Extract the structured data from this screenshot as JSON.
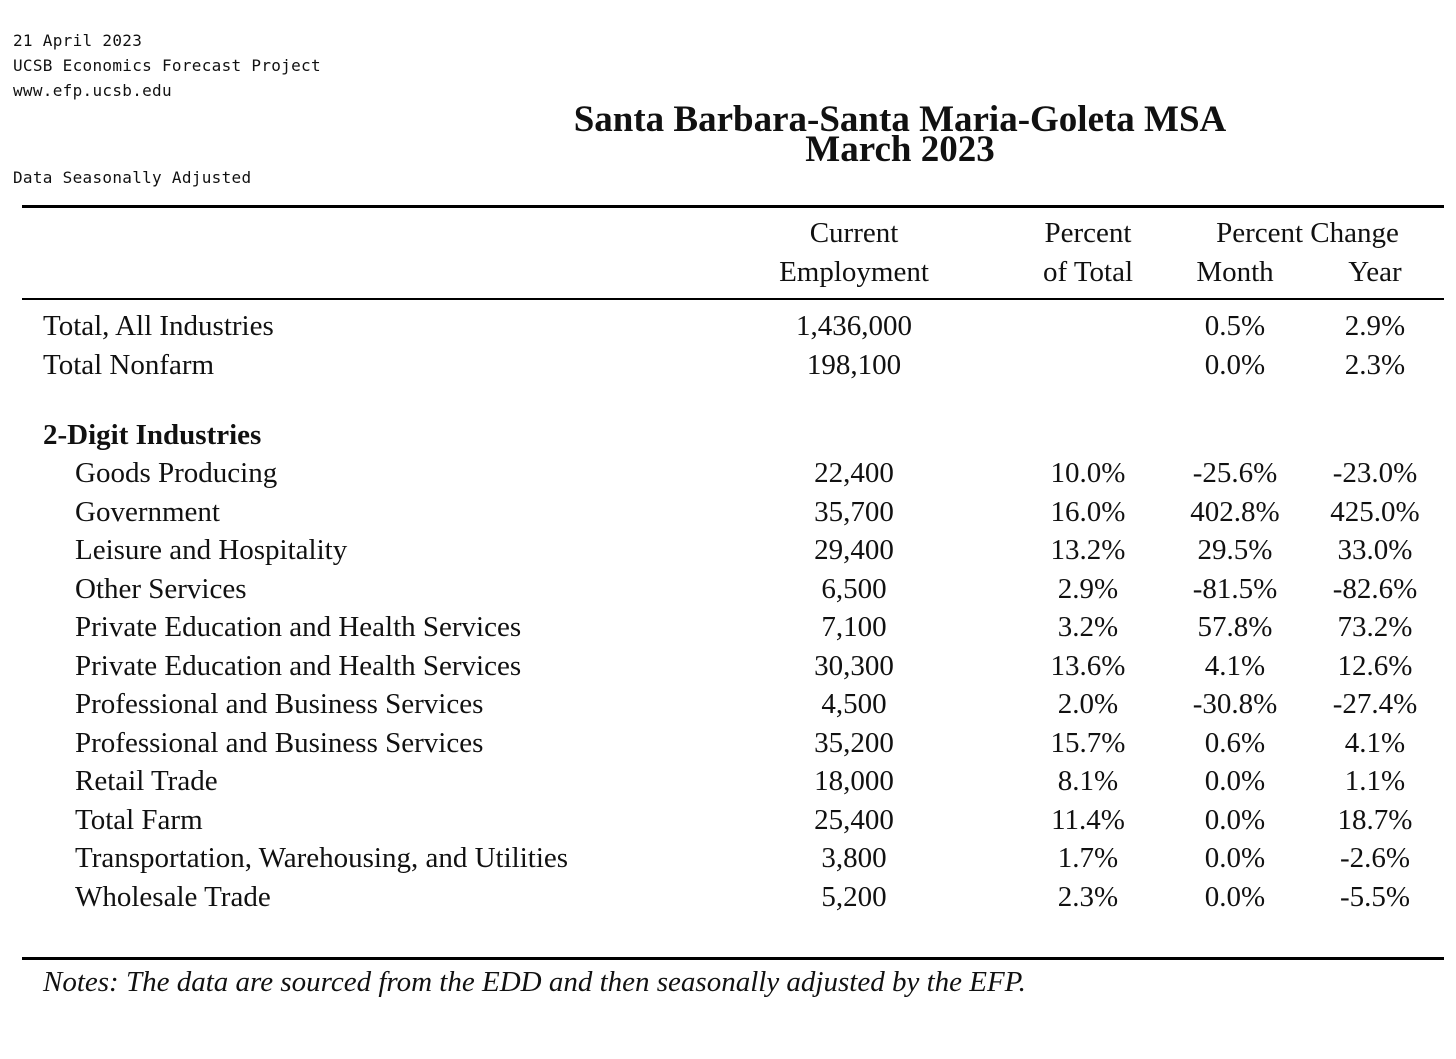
{
  "header": {
    "date": "21 April 2023",
    "organization": "UCSB Economics Forecast Project",
    "website": "www.efp.ucsb.edu",
    "adjusted_note": "Data Seasonally Adjusted",
    "title": "Santa Barbara-Santa Maria-Goleta MSA",
    "subtitle": "March 2023"
  },
  "columns": {
    "employment": [
      "Current",
      "Employment"
    ],
    "percent_total": [
      "Percent",
      "of Total"
    ],
    "percent_change": "Percent Change",
    "month": "Month",
    "year": "Year"
  },
  "totals": [
    {
      "label": "Total, All Industries",
      "employment": "1,436,000",
      "percent_total": "",
      "month": "0.5%",
      "year": "2.9%"
    },
    {
      "label": "Total Nonfarm",
      "employment": "198,100",
      "percent_total": "",
      "month": "0.0%",
      "year": "2.3%"
    }
  ],
  "section_title": "2-Digit Industries",
  "industries": [
    {
      "label": "Goods Producing",
      "employment": "22,400",
      "percent_total": "10.0%",
      "month": "-25.6%",
      "year": "-23.0%"
    },
    {
      "label": "Government",
      "employment": "35,700",
      "percent_total": "16.0%",
      "month": "402.8%",
      "year": "425.0%"
    },
    {
      "label": "Leisure and Hospitality",
      "employment": "29,400",
      "percent_total": "13.2%",
      "month": "29.5%",
      "year": "33.0%"
    },
    {
      "label": "Other Services",
      "employment": "6,500",
      "percent_total": "2.9%",
      "month": "-81.5%",
      "year": "-82.6%"
    },
    {
      "label": "Private Education and Health Services",
      "employment": "7,100",
      "percent_total": "3.2%",
      "month": "57.8%",
      "year": "73.2%"
    },
    {
      "label": "Private Education and Health Services",
      "employment": "30,300",
      "percent_total": "13.6%",
      "month": "4.1%",
      "year": "12.6%"
    },
    {
      "label": "Professional and Business Services",
      "employment": "4,500",
      "percent_total": "2.0%",
      "month": "-30.8%",
      "year": "-27.4%"
    },
    {
      "label": "Professional and Business Services",
      "employment": "35,200",
      "percent_total": "15.7%",
      "month": "0.6%",
      "year": "4.1%"
    },
    {
      "label": "Retail Trade",
      "employment": "18,000",
      "percent_total": "8.1%",
      "month": "0.0%",
      "year": "1.1%"
    },
    {
      "label": "Total Farm",
      "employment": "25,400",
      "percent_total": "11.4%",
      "month": "0.0%",
      "year": "18.7%"
    },
    {
      "label": "Transportation, Warehousing, and Utilities",
      "employment": "3,800",
      "percent_total": "1.7%",
      "month": "0.0%",
      "year": "-2.6%"
    },
    {
      "label": "Wholesale Trade",
      "employment": "5,200",
      "percent_total": "2.3%",
      "month": "0.0%",
      "year": "-5.5%"
    }
  ],
  "notes": "Notes: The data are sourced from the EDD and then seasonally adjusted by the EFP."
}
